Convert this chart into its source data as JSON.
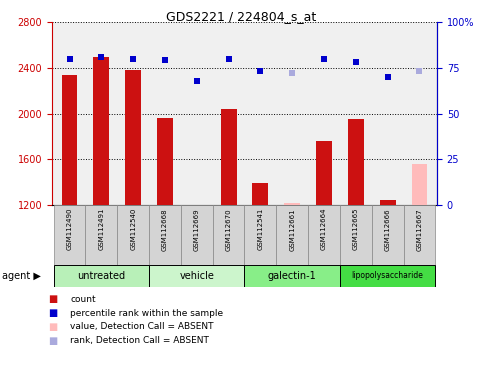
{
  "title": "GDS2221 / 224804_s_at",
  "samples": [
    "GSM112490",
    "GSM112491",
    "GSM112540",
    "GSM112668",
    "GSM112669",
    "GSM112670",
    "GSM112541",
    "GSM112661",
    "GSM112664",
    "GSM112665",
    "GSM112666",
    "GSM112667"
  ],
  "counts": [
    2340,
    2490,
    2380,
    1960,
    1185,
    2040,
    1390,
    null,
    1760,
    1950,
    1240,
    null
  ],
  "counts_absent": [
    null,
    null,
    null,
    null,
    null,
    null,
    null,
    1220,
    null,
    null,
    null,
    1560
  ],
  "ranks": [
    80,
    81,
    80,
    79,
    68,
    80,
    73,
    null,
    80,
    78,
    70,
    73
  ],
  "ranks_absent": [
    null,
    null,
    null,
    null,
    null,
    null,
    null,
    72,
    null,
    null,
    null,
    73
  ],
  "ylim_left": [
    1200,
    2800
  ],
  "ylim_right": [
    0,
    100
  ],
  "yticks_left": [
    1200,
    1600,
    2000,
    2400,
    2800
  ],
  "yticks_right": [
    0,
    25,
    50,
    75,
    100
  ],
  "groups": [
    {
      "label": "untreated",
      "indices": [
        0,
        1,
        2
      ]
    },
    {
      "label": "vehicle",
      "indices": [
        3,
        4,
        5
      ]
    },
    {
      "label": "galectin-1",
      "indices": [
        6,
        7,
        8
      ]
    },
    {
      "label": "lipopolysaccharide",
      "indices": [
        9,
        10,
        11
      ]
    }
  ],
  "group_colors": [
    "#b8f0b8",
    "#ccf5cc",
    "#88ee88",
    "#44dd44"
  ],
  "bar_color_present": "#cc1111",
  "bar_color_absent": "#ffbbbb",
  "dot_color_present": "#0000cc",
  "dot_color_absent": "#aaaadd",
  "tick_color_left": "#cc0000",
  "tick_color_right": "#0000cc",
  "legend_items": [
    {
      "color": "#cc1111",
      "label": "count"
    },
    {
      "color": "#0000cc",
      "label": "percentile rank within the sample"
    },
    {
      "color": "#ffbbbb",
      "label": "value, Detection Call = ABSENT"
    },
    {
      "color": "#aaaadd",
      "label": "rank, Detection Call = ABSENT"
    }
  ]
}
